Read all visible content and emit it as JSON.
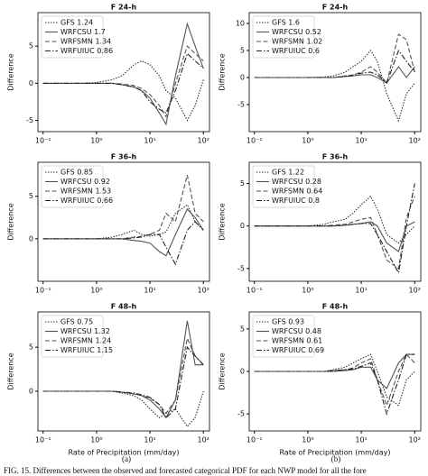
{
  "chart_data": [
    {
      "type": "line",
      "title": "F 24-h",
      "ylabel": "Difference",
      "log_x": true,
      "legend": "upper left",
      "x": [
        0.1,
        0.2,
        0.3,
        0.5,
        1,
        2,
        3,
        5,
        7,
        10,
        15,
        20,
        30,
        50,
        70,
        100
      ],
      "xlim": [
        0.08,
        130
      ],
      "xticks": [
        {
          "value": 0.1,
          "label": "10⁻¹"
        },
        {
          "value": 1,
          "label": "10⁰"
        },
        {
          "value": 10,
          "label": "10¹"
        },
        {
          "value": 100,
          "label": "10²"
        }
      ],
      "ylim": [
        -6.5,
        9.5
      ],
      "yticks": [
        -5,
        0,
        5
      ],
      "series": [
        {
          "name": "GFS 1.24",
          "color": "#333333",
          "style": "dotted",
          "values": [
            0,
            0,
            0,
            0,
            0.1,
            0.5,
            1,
            2.5,
            3,
            2.5,
            1,
            -1,
            -2,
            -5,
            -3,
            0.5
          ]
        },
        {
          "name": "WRFCSU 1.7",
          "color": "#555555",
          "style": "solid",
          "values": [
            0,
            0,
            0,
            0,
            0,
            0,
            -0.2,
            -0.5,
            -1,
            -2,
            -4,
            -5.5,
            1,
            8,
            5,
            2
          ]
        },
        {
          "name": "WRFSMN 1.34",
          "color": "#555555",
          "style": "dashed",
          "values": [
            0,
            0,
            0,
            0,
            0,
            0,
            -0.1,
            -0.3,
            -0.7,
            -1.5,
            -3,
            -4.5,
            0,
            5,
            4,
            3
          ]
        },
        {
          "name": "WRFUIUC 0.86",
          "color": "#222222",
          "style": "dashdot",
          "values": [
            0,
            0,
            0,
            0,
            0,
            0,
            -0.2,
            -0.5,
            -1,
            -2.5,
            -3.5,
            -4,
            -1,
            4,
            3,
            2
          ]
        }
      ]
    },
    {
      "type": "line",
      "title": "F 24-h",
      "ylabel": "Difference",
      "log_x": true,
      "legend": "upper left",
      "x": [
        0.1,
        0.2,
        0.3,
        0.5,
        1,
        2,
        3,
        5,
        7,
        10,
        15,
        20,
        30,
        50,
        70,
        100
      ],
      "xlim": [
        0.08,
        130
      ],
      "xticks": [
        {
          "value": 0.1,
          "label": "10⁻¹"
        },
        {
          "value": 1,
          "label": "10⁰"
        },
        {
          "value": 10,
          "label": "10¹"
        },
        {
          "value": 100,
          "label": "10²"
        }
      ],
      "ylim": [
        -10,
        12
      ],
      "yticks": [
        -5,
        0,
        5,
        10
      ],
      "series": [
        {
          "name": "GFS 1.6",
          "color": "#333333",
          "style": "dotted",
          "values": [
            0,
            0,
            0,
            0,
            0,
            0.1,
            0.3,
            1,
            2,
            3,
            5,
            3,
            -3,
            -8,
            -3,
            -1
          ]
        },
        {
          "name": "WRFCSU 0.52",
          "color": "#555555",
          "style": "solid",
          "values": [
            0,
            0,
            0,
            0,
            0,
            0,
            0,
            0.2,
            0.3,
            0.5,
            0.5,
            0,
            -1,
            2,
            0,
            2
          ]
        },
        {
          "name": "WRFSMN 1.02",
          "color": "#555555",
          "style": "dashed",
          "values": [
            0,
            0,
            0,
            0,
            0,
            0,
            0,
            0.3,
            0.5,
            1,
            2,
            1,
            -1,
            8,
            7,
            1
          ]
        },
        {
          "name": "WRFUIUC 0.6",
          "color": "#222222",
          "style": "dashdot",
          "values": [
            0,
            0,
            0,
            0,
            0,
            0,
            0,
            0.2,
            0.4,
            0.8,
            1,
            0.5,
            -1,
            5,
            3,
            1
          ]
        }
      ]
    },
    {
      "type": "line",
      "title": "F 36-h",
      "ylabel": "Difference",
      "log_x": true,
      "legend": "upper left",
      "x": [
        0.1,
        0.2,
        0.3,
        0.5,
        1,
        2,
        3,
        5,
        7,
        10,
        15,
        20,
        30,
        50,
        70,
        100
      ],
      "xlim": [
        0.08,
        130
      ],
      "xticks": [
        {
          "value": 0.1,
          "label": "10⁻¹"
        },
        {
          "value": 1,
          "label": "10⁰"
        },
        {
          "value": 10,
          "label": "10¹"
        },
        {
          "value": 100,
          "label": "10²"
        }
      ],
      "ylim": [
        -5,
        9
      ],
      "yticks": [
        0,
        5
      ],
      "series": [
        {
          "name": "GFS 0.85",
          "color": "#333333",
          "style": "dotted",
          "values": [
            0,
            0,
            0,
            0,
            0,
            0.2,
            0.5,
            1,
            0.5,
            0.3,
            0.5,
            0.8,
            3,
            4,
            2,
            1
          ]
        },
        {
          "name": "WRFCSU 0.92",
          "color": "#555555",
          "style": "solid",
          "values": [
            0,
            0,
            0,
            0,
            0,
            0,
            0,
            -0.2,
            -0.3,
            -0.5,
            -1.5,
            -2,
            0.5,
            3.5,
            2.5,
            1
          ]
        },
        {
          "name": "WRFSMN 1.53",
          "color": "#555555",
          "style": "dashed",
          "values": [
            0,
            0,
            0,
            0,
            0,
            0,
            0,
            0.2,
            0.3,
            0.5,
            1,
            3,
            2,
            7.5,
            3,
            2
          ]
        },
        {
          "name": "WRFUIUC 0.66",
          "color": "#222222",
          "style": "dashdot",
          "values": [
            0,
            0,
            0,
            0,
            0,
            0,
            0,
            0.1,
            0.2,
            0.5,
            0.5,
            -1,
            -3,
            1,
            2,
            1
          ]
        }
      ]
    },
    {
      "type": "line",
      "title": "F 36-h",
      "ylabel": "Difference",
      "log_x": true,
      "legend": "upper left",
      "x": [
        0.1,
        0.2,
        0.3,
        0.5,
        1,
        2,
        3,
        5,
        7,
        10,
        15,
        20,
        30,
        50,
        70,
        100
      ],
      "xlim": [
        0.08,
        130
      ],
      "xticks": [
        {
          "value": 0.1,
          "label": "10⁻¹"
        },
        {
          "value": 1,
          "label": "10⁰"
        },
        {
          "value": 10,
          "label": "10¹"
        },
        {
          "value": 100,
          "label": "10²"
        }
      ],
      "ylim": [
        -6.5,
        7.5
      ],
      "yticks": [
        -5,
        0,
        5
      ],
      "series": [
        {
          "name": "GFS 1.22",
          "color": "#333333",
          "style": "dotted",
          "values": [
            0,
            0,
            0,
            0,
            0,
            0.2,
            0.5,
            0.8,
            1.5,
            2.5,
            3.5,
            2,
            -1,
            -2,
            -1,
            0
          ]
        },
        {
          "name": "WRFCSU 0.28",
          "color": "#555555",
          "style": "solid",
          "values": [
            0,
            0,
            0,
            0,
            0,
            0,
            0,
            0.1,
            0.2,
            0.3,
            0.5,
            0,
            -2,
            -3,
            0,
            0.5
          ]
        },
        {
          "name": "WRFSMN 0.64",
          "color": "#555555",
          "style": "dashed",
          "values": [
            0,
            0,
            0,
            0,
            0,
            0,
            0.1,
            0.2,
            0.5,
            0.8,
            1,
            -1,
            -4,
            -5,
            1,
            3.5
          ]
        },
        {
          "name": "WRFUIUC 0.8",
          "color": "#222222",
          "style": "dashdot",
          "values": [
            0,
            0,
            0,
            0,
            0,
            0,
            0,
            0.1,
            0.2,
            0.3,
            0.3,
            -1,
            -3,
            -5.5,
            0,
            5
          ]
        }
      ]
    },
    {
      "type": "line",
      "title": "F 48-h",
      "ylabel": "Difference",
      "xlabel": "Rate of Precipitation (mm/day)",
      "log_x": true,
      "legend": "upper left",
      "x": [
        0.1,
        0.2,
        0.3,
        0.5,
        1,
        2,
        3,
        5,
        7,
        10,
        15,
        20,
        30,
        50,
        70,
        100
      ],
      "xlim": [
        0.08,
        130
      ],
      "xticks": [
        {
          "value": 0.1,
          "label": "10⁻¹"
        },
        {
          "value": 1,
          "label": "10⁰"
        },
        {
          "value": 10,
          "label": "10¹"
        },
        {
          "value": 100,
          "label": "10²"
        }
      ],
      "ylim": [
        -4.5,
        9
      ],
      "yticks": [
        0,
        5
      ],
      "series": [
        {
          "name": "GFS 0.75",
          "color": "#333333",
          "style": "dotted",
          "values": [
            0,
            0,
            0,
            0,
            0,
            0,
            -0.2,
            -0.5,
            -1,
            -2,
            -3,
            -2.5,
            -2,
            -4,
            -3,
            0
          ]
        },
        {
          "name": "WRFCSU 1.32",
          "color": "#555555",
          "style": "solid",
          "values": [
            0,
            0,
            0,
            0,
            0,
            0,
            -0.1,
            -0.3,
            -0.5,
            -1,
            -2,
            -3,
            -1,
            8,
            3,
            3
          ]
        },
        {
          "name": "WRFSMN 1.24",
          "color": "#555555",
          "style": "dashed",
          "values": [
            0,
            0,
            0,
            0,
            0,
            0,
            -0.1,
            -0.3,
            -0.5,
            -0.8,
            -1.5,
            -2.5,
            -1,
            6,
            4,
            3
          ]
        },
        {
          "name": "WRFUIUC 1.15",
          "color": "#222222",
          "style": "dashdot",
          "values": [
            0,
            0,
            0,
            0,
            0,
            0,
            -0.1,
            -0.2,
            -0.4,
            -0.7,
            -1.5,
            -3,
            -2,
            5,
            4,
            3
          ]
        }
      ]
    },
    {
      "type": "line",
      "title": "F 48-h",
      "ylabel": "Difference",
      "xlabel": "Rate of Precipitation (mm/day)",
      "log_x": true,
      "legend": "upper left",
      "x": [
        0.1,
        0.2,
        0.3,
        0.5,
        1,
        2,
        3,
        5,
        7,
        10,
        15,
        20,
        30,
        50,
        70,
        100
      ],
      "xlim": [
        0.08,
        130
      ],
      "xticks": [
        {
          "value": 0.1,
          "label": "10⁻¹"
        },
        {
          "value": 1,
          "label": "10⁰"
        },
        {
          "value": 10,
          "label": "10¹"
        },
        {
          "value": 100,
          "label": "10²"
        }
      ],
      "ylim": [
        -7,
        7
      ],
      "yticks": [
        -5,
        0,
        5
      ],
      "series": [
        {
          "name": "GFS 0.93",
          "color": "#333333",
          "style": "dotted",
          "values": [
            0,
            0,
            0,
            0,
            0,
            0,
            0.2,
            0.5,
            1,
            1.5,
            2,
            0,
            -3,
            -4,
            -1,
            0
          ]
        },
        {
          "name": "WRFCSU 0.48",
          "color": "#555555",
          "style": "solid",
          "values": [
            0,
            0,
            0,
            0,
            0,
            0,
            0,
            0.1,
            0.2,
            0.5,
            0.5,
            -1,
            -2,
            1,
            2,
            2
          ]
        },
        {
          "name": "WRFSMN 0.61",
          "color": "#555555",
          "style": "dashed",
          "values": [
            0,
            0,
            0,
            0,
            0,
            0,
            0.1,
            0.2,
            0.4,
            1,
            1.5,
            -1,
            -4,
            0,
            2,
            1
          ]
        },
        {
          "name": "WRFUIUC 0.69",
          "color": "#222222",
          "style": "dashdot",
          "values": [
            0,
            0,
            0,
            0,
            0,
            0,
            0.1,
            0.2,
            0.3,
            0.6,
            1,
            -1,
            -5,
            -1,
            2,
            2
          ]
        }
      ]
    }
  ],
  "panel_labels": [
    "(a)",
    "(b)"
  ],
  "figure_caption": "FIG. 15. Differences between the observed and forecasted categorical PDF for each NWP model for all the fore"
}
